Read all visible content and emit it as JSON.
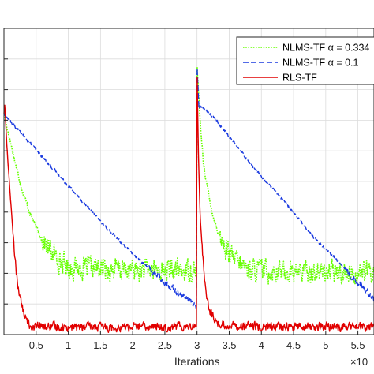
{
  "chart_data": {
    "type": "line",
    "title": "",
    "xlabel": "Iterations",
    "ylabel": "",
    "x_exponent_label": "×10",
    "x_ticks": [
      "0.5",
      "1",
      "1.5",
      "2",
      "2.5",
      "3",
      "3.5",
      "4",
      "4.5",
      "5",
      "5.5"
    ],
    "x_tick_values": [
      0.5,
      1,
      1.5,
      2,
      2.5,
      3,
      3.5,
      4,
      4.5,
      5,
      5.5
    ],
    "xlim": [
      0,
      5.75
    ],
    "ylim": [
      0,
      10
    ],
    "grid": true,
    "legend_position": "top-right",
    "series": [
      {
        "name": "NLMS-TF α = 0.334",
        "color": "#66ff00",
        "style": "dotted",
        "noise": 0.55,
        "x": [
          0,
          0.1,
          0.2,
          0.3,
          0.4,
          0.5,
          0.6,
          0.7,
          0.8,
          0.9,
          1.0,
          1.5,
          2.0,
          2.5,
          2.99,
          3.0,
          3.05,
          3.1,
          3.2,
          3.3,
          3.4,
          3.5,
          3.6,
          3.7,
          3.8,
          3.9,
          4.0,
          4.5,
          5.0,
          5.5,
          5.75
        ],
        "y": [
          7.2,
          6.3,
          5.4,
          4.6,
          4.0,
          3.5,
          3.1,
          2.8,
          2.55,
          2.35,
          2.2,
          2.15,
          2.1,
          2.1,
          2.1,
          8.8,
          6.9,
          5.6,
          4.3,
          3.5,
          3.0,
          2.6,
          2.4,
          2.25,
          2.15,
          2.1,
          2.1,
          2.05,
          2.05,
          2.0,
          2.05
        ]
      },
      {
        "name": "NLMS-TF α = 0.1",
        "color": "#1a3adf",
        "style": "dashed-then-solid",
        "noise": 0.12,
        "x": [
          0,
          0.3,
          0.6,
          0.9,
          1.2,
          1.5,
          1.8,
          2.1,
          2.4,
          2.7,
          2.99,
          3.0,
          3.03,
          3.08,
          3.3,
          3.6,
          3.9,
          4.2,
          4.5,
          4.8,
          5.1,
          5.4,
          5.7,
          5.75
        ],
        "y": [
          7.2,
          6.5,
          5.8,
          5.1,
          4.4,
          3.7,
          3.05,
          2.45,
          1.9,
          1.4,
          0.95,
          8.8,
          7.4,
          7.45,
          7.0,
          6.2,
          5.4,
          4.7,
          4.0,
          3.2,
          2.6,
          1.9,
          1.3,
          1.2
        ]
      },
      {
        "name": "RLS-TF",
        "color": "#e10000",
        "style": "solid",
        "noise": 0.22,
        "x": [
          0,
          0.01,
          0.05,
          0.1,
          0.15,
          0.2,
          0.25,
          0.3,
          0.35,
          0.4,
          0.5,
          1.0,
          1.5,
          2.0,
          2.5,
          2.99,
          3.0,
          3.02,
          3.05,
          3.1,
          3.15,
          3.2,
          3.3,
          3.4,
          3.5,
          4.0,
          4.5,
          5.0,
          5.5,
          5.75
        ],
        "y": [
          7.2,
          7.6,
          6.0,
          4.5,
          3.0,
          1.9,
          1.2,
          0.75,
          0.45,
          0.3,
          0.25,
          0.25,
          0.25,
          0.25,
          0.25,
          0.3,
          8.8,
          6.0,
          3.8,
          2.2,
          1.3,
          0.8,
          0.4,
          0.3,
          0.3,
          0.25,
          0.25,
          0.25,
          0.25,
          0.25
        ]
      }
    ]
  }
}
